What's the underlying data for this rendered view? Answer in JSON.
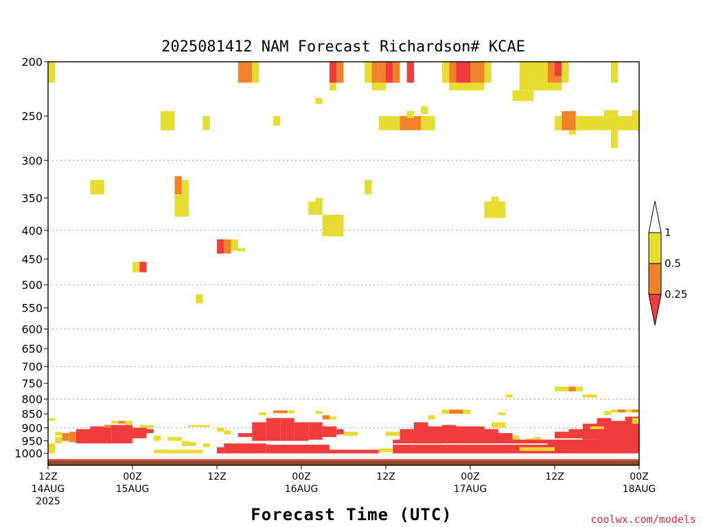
{
  "chart_data": {
    "type": "heatmap",
    "title": "2025081412 NAM Forecast Richardson# KCAE",
    "xlabel": "Forecast Time (UTC)",
    "ylabel": "",
    "y_scale": "log-pressure",
    "y_range_hpa": [
      1050,
      200
    ],
    "y_ticks": [
      "200",
      "250",
      "300",
      "350",
      "400",
      "450",
      "500",
      "550",
      "600",
      "650",
      "700",
      "750",
      "800",
      "850",
      "900",
      "950",
      "1000"
    ],
    "x_range_hours": [
      0,
      84
    ],
    "x_ticks": [
      {
        "hour": 0,
        "line1": "12Z",
        "line2": "14AUG",
        "line3": "2025"
      },
      {
        "hour": 12,
        "line1": "00Z",
        "line2": "15AUG",
        "line3": ""
      },
      {
        "hour": 24,
        "line1": "12Z",
        "line2": "",
        "line3": ""
      },
      {
        "hour": 36,
        "line1": "00Z",
        "line2": "16AUG",
        "line3": ""
      },
      {
        "hour": 48,
        "line1": "12Z",
        "line2": "",
        "line3": ""
      },
      {
        "hour": 60,
        "line1": "00Z",
        "line2": "17AUG",
        "line3": ""
      },
      {
        "hour": 72,
        "line1": "12Z",
        "line2": "",
        "line3": ""
      },
      {
        "hour": 84,
        "line1": "00Z",
        "line2": "18AUG",
        "line3": ""
      }
    ],
    "grid": "horizontal dotted",
    "colorbar": {
      "position": "right",
      "labels": [
        "1",
        "0.5",
        "0.25"
      ],
      "bins": [
        {
          "range": "0.5-1",
          "color": "#e6dc32"
        },
        {
          "range": "0.25-0.5",
          "color": "#f0822a"
        },
        {
          "range": "<0.25",
          "color": "#f03c3c"
        }
      ]
    },
    "colors": {
      "low": "#f03c3c",
      "mid": "#f0822a",
      "high": "#e6dc32",
      "ground": "#8b4a28"
    },
    "surface_layer": {
      "top_hpa": 1030,
      "color": "#8b4a28"
    },
    "cells": [
      [
        0,
        1,
        200,
        218,
        "high"
      ],
      [
        27,
        29,
        200,
        218,
        "mid"
      ],
      [
        29,
        30,
        200,
        218,
        "high"
      ],
      [
        40,
        41,
        200,
        218,
        "low"
      ],
      [
        41,
        42,
        200,
        218,
        "mid"
      ],
      [
        40,
        41,
        218,
        225,
        "high"
      ],
      [
        45,
        46,
        200,
        218,
        "high"
      ],
      [
        46,
        47,
        200,
        218,
        "mid"
      ],
      [
        46,
        48,
        218,
        225,
        "high"
      ],
      [
        47,
        48,
        200,
        218,
        "mid"
      ],
      [
        48,
        49,
        200,
        218,
        "low"
      ],
      [
        49,
        50,
        200,
        218,
        "mid"
      ],
      [
        51,
        52,
        200,
        218,
        "low"
      ],
      [
        56,
        57,
        200,
        218,
        "high"
      ],
      [
        57,
        58,
        200,
        218,
        "mid"
      ],
      [
        58,
        60,
        200,
        218,
        "low"
      ],
      [
        60,
        62,
        200,
        218,
        "mid"
      ],
      [
        62,
        63,
        200,
        218,
        "high"
      ],
      [
        57,
        62,
        218,
        225,
        "high"
      ],
      [
        67,
        71,
        200,
        225,
        "high"
      ],
      [
        66,
        69,
        225,
        235,
        "high"
      ],
      [
        71,
        73,
        200,
        218,
        "mid"
      ],
      [
        72,
        73,
        200,
        212,
        "low"
      ],
      [
        71,
        73,
        218,
        225,
        "high"
      ],
      [
        73,
        74,
        200,
        218,
        "high"
      ],
      [
        80,
        81,
        200,
        218,
        "high"
      ],
      [
        38,
        39,
        232,
        238,
        "high"
      ],
      [
        47,
        50,
        250,
        265,
        "high"
      ],
      [
        50,
        52,
        250,
        265,
        "mid"
      ],
      [
        51,
        52,
        245,
        252,
        "high"
      ],
      [
        52,
        53,
        250,
        265,
        "mid"
      ],
      [
        53,
        55,
        250,
        265,
        "high"
      ],
      [
        53,
        54,
        240,
        248,
        "high"
      ],
      [
        16,
        18,
        245,
        265,
        "high"
      ],
      [
        22,
        23,
        250,
        265,
        "high"
      ],
      [
        32,
        33,
        250,
        260,
        "high"
      ],
      [
        72,
        73,
        250,
        265,
        "high"
      ],
      [
        73,
        75,
        245,
        265,
        "mid"
      ],
      [
        74,
        75,
        265,
        270,
        "high"
      ],
      [
        75,
        84,
        250,
        265,
        "high"
      ],
      [
        79,
        81,
        244,
        250,
        "high"
      ],
      [
        83,
        84,
        244,
        250,
        "high"
      ],
      [
        80,
        81,
        265,
        285,
        "high"
      ],
      [
        6,
        8,
        325,
        345,
        "high"
      ],
      [
        18,
        19,
        320,
        345,
        "mid"
      ],
      [
        18,
        20,
        345,
        378,
        "high"
      ],
      [
        19,
        20,
        325,
        345,
        "high"
      ],
      [
        45,
        46,
        325,
        345,
        "high"
      ],
      [
        37,
        38,
        355,
        375,
        "high"
      ],
      [
        38,
        39,
        350,
        375,
        "high"
      ],
      [
        39,
        42,
        375,
        410,
        "high"
      ],
      [
        62,
        65,
        355,
        380,
        "high"
      ],
      [
        63,
        64,
        348,
        355,
        "high"
      ],
      [
        24,
        25,
        415,
        440,
        "low"
      ],
      [
        25,
        26,
        415,
        440,
        "mid"
      ],
      [
        26,
        27,
        415,
        435,
        "high"
      ],
      [
        27,
        28,
        430,
        436,
        "high"
      ],
      [
        12,
        13,
        455,
        475,
        "high"
      ],
      [
        13,
        14,
        455,
        475,
        "low"
      ],
      [
        21,
        22,
        520,
        540,
        "high"
      ],
      [
        72,
        74,
        760,
        775,
        "high"
      ],
      [
        74,
        75,
        760,
        775,
        "mid"
      ],
      [
        75,
        76,
        760,
        775,
        "high"
      ],
      [
        65,
        66,
        785,
        795,
        "high"
      ],
      [
        76,
        78,
        785,
        795,
        "high"
      ],
      [
        56,
        57,
        835,
        850,
        "high"
      ],
      [
        57,
        59,
        835,
        850,
        "mid"
      ],
      [
        59,
        60,
        835,
        850,
        "high"
      ],
      [
        54,
        55,
        855,
        870,
        "high"
      ],
      [
        64,
        65,
        845,
        855,
        "high"
      ],
      [
        79,
        80,
        840,
        855,
        "high"
      ],
      [
        80,
        84,
        835,
        845,
        "high"
      ],
      [
        81,
        82,
        835,
        845,
        "mid"
      ],
      [
        83,
        84,
        835,
        845,
        "mid"
      ],
      [
        0,
        1,
        865,
        875,
        "high"
      ],
      [
        30,
        31,
        845,
        855,
        "high"
      ],
      [
        32,
        34,
        838,
        848,
        "mid"
      ],
      [
        34,
        35,
        838,
        848,
        "high"
      ],
      [
        38,
        39,
        840,
        850,
        "high"
      ],
      [
        39,
        40,
        855,
        870,
        "mid"
      ],
      [
        40,
        41,
        860,
        870,
        "high"
      ],
      [
        9,
        10,
        875,
        885,
        "high"
      ],
      [
        10,
        11,
        875,
        885,
        "mid"
      ],
      [
        11,
        12,
        875,
        890,
        "high"
      ],
      [
        13,
        15,
        890,
        900,
        "high"
      ],
      [
        20,
        23,
        890,
        897,
        "high"
      ],
      [
        1,
        2,
        915,
        930,
        "high"
      ],
      [
        1,
        2,
        935,
        960,
        "high"
      ],
      [
        2,
        3,
        920,
        950,
        "mid"
      ],
      [
        3,
        4,
        915,
        955,
        "mid"
      ],
      [
        4,
        6,
        905,
        960,
        "low"
      ],
      [
        6,
        9,
        895,
        960,
        "low"
      ],
      [
        8,
        10,
        890,
        900,
        "mid"
      ],
      [
        9,
        12,
        890,
        960,
        "low"
      ],
      [
        12,
        14,
        900,
        940,
        "low"
      ],
      [
        14,
        15,
        905,
        920,
        "low"
      ],
      [
        15,
        16,
        930,
        950,
        "high"
      ],
      [
        17,
        19,
        935,
        950,
        "high"
      ],
      [
        19,
        20,
        950,
        970,
        "high"
      ],
      [
        20,
        21,
        955,
        970,
        "high"
      ],
      [
        22,
        23,
        960,
        975,
        "high"
      ],
      [
        24,
        25,
        900,
        915,
        "high"
      ],
      [
        25,
        26,
        910,
        925,
        "high"
      ],
      [
        27,
        29,
        920,
        935,
        "low"
      ],
      [
        29,
        31,
        880,
        950,
        "low"
      ],
      [
        31,
        33,
        865,
        950,
        "low"
      ],
      [
        33,
        35,
        865,
        950,
        "low"
      ],
      [
        35,
        37,
        880,
        950,
        "low"
      ],
      [
        37,
        39,
        880,
        945,
        "low"
      ],
      [
        39,
        41,
        895,
        935,
        "low"
      ],
      [
        41,
        42,
        905,
        925,
        "low"
      ],
      [
        42,
        44,
        915,
        930,
        "high"
      ],
      [
        0,
        1,
        960,
        1000,
        "high"
      ],
      [
        15,
        22,
        985,
        1000,
        "high"
      ],
      [
        24,
        25,
        975,
        1000,
        "low"
      ],
      [
        25,
        31,
        960,
        1000,
        "low"
      ],
      [
        31,
        40,
        965,
        1000,
        "low"
      ],
      [
        40,
        47,
        985,
        1000,
        "low"
      ],
      [
        47,
        49,
        980,
        995,
        "high"
      ],
      [
        49,
        50,
        985,
        995,
        "mid"
      ],
      [
        48,
        50,
        915,
        930,
        "high"
      ],
      [
        50,
        53,
        905,
        955,
        "low"
      ],
      [
        52,
        54,
        880,
        960,
        "low"
      ],
      [
        54,
        56,
        895,
        960,
        "low"
      ],
      [
        56,
        58,
        890,
        955,
        "low"
      ],
      [
        58,
        60,
        895,
        955,
        "low"
      ],
      [
        60,
        62,
        895,
        950,
        "low"
      ],
      [
        62,
        64,
        905,
        950,
        "low"
      ],
      [
        63,
        65,
        880,
        900,
        "high"
      ],
      [
        64,
        66,
        920,
        955,
        "low"
      ],
      [
        66,
        67,
        930,
        950,
        "high"
      ],
      [
        68,
        69,
        940,
        950,
        "high"
      ],
      [
        69,
        70,
        935,
        950,
        "high"
      ],
      [
        72,
        74,
        915,
        940,
        "low"
      ],
      [
        74,
        76,
        905,
        940,
        "low"
      ],
      [
        76,
        78,
        885,
        945,
        "low"
      ],
      [
        78,
        80,
        865,
        950,
        "low"
      ],
      [
        80,
        82,
        875,
        950,
        "low"
      ],
      [
        82,
        84,
        860,
        950,
        "low"
      ],
      [
        77,
        79,
        895,
        905,
        "high"
      ],
      [
        83,
        84,
        865,
        885,
        "high"
      ],
      [
        49,
        84,
        965,
        1000,
        "low"
      ],
      [
        49,
        84,
        945,
        960,
        "low"
      ],
      [
        71,
        84,
        955,
        968,
        "low"
      ],
      [
        67,
        72,
        975,
        990,
        "high"
      ]
    ]
  },
  "footer": {
    "credit": "coolwx.com/models"
  }
}
